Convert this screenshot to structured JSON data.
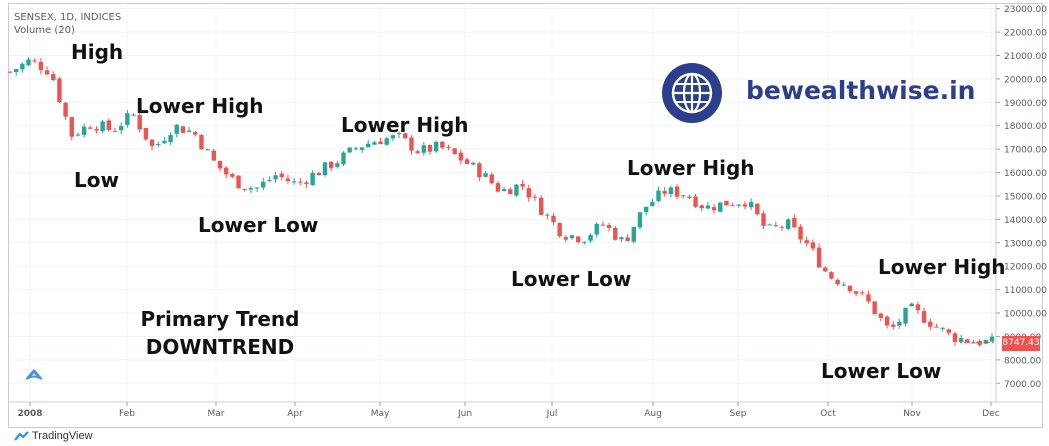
{
  "header": {
    "symbol_line": "SENSEX, 1D, INDICES",
    "volume_line": "Volume (20)"
  },
  "annotations": {
    "high": "High",
    "low": "Low",
    "lower_high_1": "Lower High",
    "lower_low_1": "Lower Low",
    "lower_high_2": "Lower High",
    "lower_low_2": "Lower Low",
    "lower_high_3": "Lower High",
    "lower_high_4": "Lower High",
    "lower_low_3": "Lower Low"
  },
  "trend_label": {
    "line1": "Primary Trend",
    "line2": "DOWNTREND"
  },
  "brand": {
    "text": "bewealthwise.in",
    "icon": "globe-icon",
    "color": "#2b3f8c"
  },
  "last_price": "8747.43",
  "footer": {
    "logo_text": "TradingView"
  },
  "colors": {
    "up": "#26a69a",
    "down": "#ef5350",
    "grid": "#f0f3fa"
  },
  "chart_data": {
    "type": "candlestick",
    "title": "SENSEX, 1D, INDICES",
    "xlabel": "",
    "ylabel": "",
    "x_ticks": [
      "2008",
      "Feb",
      "Mar",
      "Apr",
      "May",
      "Jun",
      "Jul",
      "Aug",
      "Sep",
      "Oct",
      "Nov",
      "Dec"
    ],
    "y_ticks": [
      "7000.00",
      "8000.00",
      "9000.00",
      "10000.00",
      "11000.00",
      "12000.00",
      "13000.00",
      "14000.00",
      "15000.00",
      "16000.00",
      "17000.00",
      "18000.00",
      "19000.00",
      "20000.00",
      "21000.00",
      "22000.00",
      "23000.00"
    ],
    "ylim": [
      6200,
      23200
    ],
    "grid": true,
    "series": [
      {
        "values": [
          {
            "x": "2008-01-01",
            "close": 20300
          },
          {
            "x": "2008-01-08",
            "close": 20800
          },
          {
            "x": "2008-01-15",
            "close": 20300
          },
          {
            "x": "2008-01-22",
            "close": 17600
          },
          {
            "x": "2008-01-29",
            "close": 18100
          },
          {
            "x": "2008-02-05",
            "close": 17800
          },
          {
            "x": "2008-02-12",
            "close": 18500
          },
          {
            "x": "2008-02-19",
            "close": 17000
          },
          {
            "x": "2008-02-26",
            "close": 18000
          },
          {
            "x": "2008-03-04",
            "close": 17700
          },
          {
            "x": "2008-03-11",
            "close": 16400
          },
          {
            "x": "2008-03-18",
            "close": 15600
          },
          {
            "x": "2008-03-25",
            "close": 15300
          },
          {
            "x": "2008-04-01",
            "close": 15900
          },
          {
            "x": "2008-04-08",
            "close": 15500
          },
          {
            "x": "2008-04-15",
            "close": 16000
          },
          {
            "x": "2008-04-22",
            "close": 16500
          },
          {
            "x": "2008-04-29",
            "close": 17100
          },
          {
            "x": "2008-05-06",
            "close": 17400
          },
          {
            "x": "2008-05-13",
            "close": 17500
          },
          {
            "x": "2008-05-20",
            "close": 16900
          },
          {
            "x": "2008-05-27",
            "close": 17100
          },
          {
            "x": "2008-06-03",
            "close": 16600
          },
          {
            "x": "2008-06-10",
            "close": 16000
          },
          {
            "x": "2008-06-17",
            "close": 15200
          },
          {
            "x": "2008-06-24",
            "close": 15500
          },
          {
            "x": "2008-07-01",
            "close": 14400
          },
          {
            "x": "2008-07-08",
            "close": 13400
          },
          {
            "x": "2008-07-15",
            "close": 13200
          },
          {
            "x": "2008-07-22",
            "close": 13800
          },
          {
            "x": "2008-07-29",
            "close": 13000
          },
          {
            "x": "2008-08-05",
            "close": 14500
          },
          {
            "x": "2008-08-12",
            "close": 15200
          },
          {
            "x": "2008-08-19",
            "close": 15100
          },
          {
            "x": "2008-08-26",
            "close": 14500
          },
          {
            "x": "2008-09-02",
            "close": 14700
          },
          {
            "x": "2008-09-09",
            "close": 14800
          },
          {
            "x": "2008-09-16",
            "close": 13500
          },
          {
            "x": "2008-09-23",
            "close": 13800
          },
          {
            "x": "2008-09-30",
            "close": 12900
          },
          {
            "x": "2008-10-07",
            "close": 11600
          },
          {
            "x": "2008-10-14",
            "close": 11200
          },
          {
            "x": "2008-10-21",
            "close": 10400
          },
          {
            "x": "2008-10-28",
            "close": 9200
          },
          {
            "x": "2008-11-04",
            "close": 10200
          },
          {
            "x": "2008-11-11",
            "close": 9600
          },
          {
            "x": "2008-11-18",
            "close": 9000
          },
          {
            "x": "2008-11-25",
            "close": 8800
          },
          {
            "x": "2008-12-02",
            "close": 8747.43
          }
        ]
      }
    ]
  }
}
